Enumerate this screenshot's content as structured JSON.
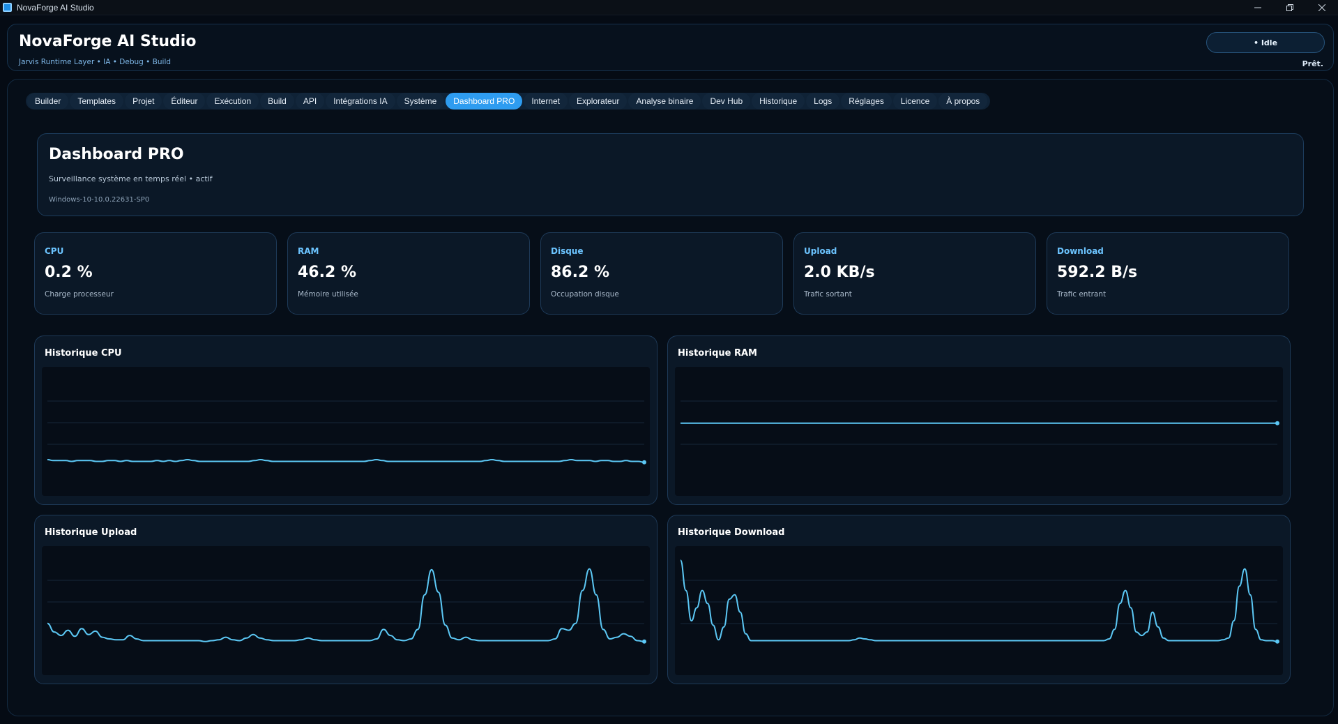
{
  "window": {
    "title": "NovaForge AI Studio"
  },
  "header": {
    "title": "NovaForge AI Studio",
    "subtitle": "Jarvis Runtime Layer • IA • Debug • Build",
    "status": "• Idle",
    "ready": "Prêt."
  },
  "tabs": [
    {
      "label": "Builder"
    },
    {
      "label": "Templates"
    },
    {
      "label": "Projet"
    },
    {
      "label": "Éditeur"
    },
    {
      "label": "Exécution"
    },
    {
      "label": "Build"
    },
    {
      "label": "API"
    },
    {
      "label": "Intégrations IA"
    },
    {
      "label": "Système"
    },
    {
      "label": "Dashboard PRO",
      "active": true
    },
    {
      "label": "Internet"
    },
    {
      "label": "Explorateur"
    },
    {
      "label": "Analyse binaire"
    },
    {
      "label": "Dev Hub"
    },
    {
      "label": "Historique"
    },
    {
      "label": "Logs"
    },
    {
      "label": "Réglages"
    },
    {
      "label": "Licence"
    },
    {
      "label": "À propos"
    }
  ],
  "dashboard": {
    "title": "Dashboard PRO",
    "subtitle": "Surveillance système en temps réel • actif",
    "os": "Windows-10-10.0.22631-SP0"
  },
  "stats": [
    {
      "label": "CPU",
      "value": "0.2 %",
      "desc": "Charge processeur"
    },
    {
      "label": "RAM",
      "value": "46.2 %",
      "desc": "Mémoire utilisée"
    },
    {
      "label": "Disque",
      "value": "86.2 %",
      "desc": "Occupation disque"
    },
    {
      "label": "Upload",
      "value": "2.0 KB/s",
      "desc": "Trafic sortant"
    },
    {
      "label": "Download",
      "value": "592.2 B/s",
      "desc": "Trafic entrant"
    }
  ],
  "charts": [
    {
      "title": "Historique CPU",
      "max": 100,
      "values": [
        4,
        3,
        3,
        3,
        2,
        3,
        3,
        3,
        2,
        2,
        3,
        3,
        2,
        3,
        2,
        2,
        2,
        2,
        3,
        2,
        3,
        2,
        3,
        4,
        3,
        2,
        2,
        2,
        2,
        2,
        2,
        2,
        2,
        2,
        3,
        4,
        3,
        2,
        2,
        2,
        2,
        2,
        2,
        2,
        2,
        2,
        2,
        2,
        2,
        2,
        2,
        2,
        2,
        3,
        4,
        3,
        2,
        2,
        2,
        2,
        2,
        2,
        2,
        2,
        2,
        2,
        2,
        2,
        2,
        2,
        2,
        2,
        3,
        4,
        3,
        2,
        2,
        2,
        2,
        2,
        2,
        2,
        2,
        2,
        2,
        3,
        4,
        3,
        3,
        3,
        2,
        3,
        3,
        2,
        2,
        3,
        2,
        2,
        1
      ]
    },
    {
      "title": "Historique RAM",
      "max": 100,
      "values": [
        46.2,
        46.2,
        46.2,
        46.2,
        46.2,
        46.2,
        46.2,
        46.2,
        46.2,
        46.2,
        46.2,
        46.2,
        46.2,
        46.2,
        46.2,
        46.2,
        46.2,
        46.2,
        46.2,
        46.2,
        46.2,
        46.2,
        46.2,
        46.2,
        46.2,
        46.2,
        46.2,
        46.2,
        46.2,
        46.2,
        46.2,
        46.2,
        46.2,
        46.2,
        46.2,
        46.2,
        46.2,
        46.2,
        46.2,
        46.2,
        46.2,
        46.2,
        46.2,
        46.2,
        46.2,
        46.2,
        46.2,
        46.2,
        46.2,
        46.2,
        46.2,
        46.2,
        46.2,
        46.2,
        46.2,
        46.2,
        46.2,
        46.2,
        46.2,
        46.2,
        46.2,
        46.2,
        46.2,
        46.2,
        46.2,
        46.2,
        46.2,
        46.2,
        46.2,
        46.2,
        46.2,
        46.2,
        46.2,
        46.2,
        46.2,
        46.2,
        46.2,
        46.2,
        46.2,
        46.2,
        46.2,
        46.2,
        46.2,
        46.2,
        46.2,
        46.2,
        46.2,
        46.2,
        46.2,
        46.2,
        46.2,
        46.2,
        46.2,
        46.2,
        46.2,
        46.2,
        46.2,
        46.2,
        46.2,
        46.2
      ]
    },
    {
      "title": "Historique Upload",
      "max": 100,
      "values": [
        22,
        12,
        8,
        14,
        7,
        16,
        9,
        13,
        6,
        4,
        3,
        3,
        8,
        4,
        2,
        2,
        2,
        2,
        2,
        2,
        2,
        2,
        2,
        1,
        2,
        3,
        6,
        3,
        2,
        5,
        9,
        5,
        3,
        2,
        2,
        2,
        2,
        3,
        5,
        3,
        2,
        2,
        2,
        2,
        2,
        2,
        2,
        2,
        4,
        15,
        8,
        3,
        2,
        4,
        15,
        55,
        84,
        58,
        20,
        5,
        3,
        6,
        3,
        2,
        2,
        2,
        2,
        2,
        2,
        2,
        2,
        2,
        2,
        2,
        4,
        16,
        14,
        22,
        60,
        85,
        55,
        15,
        4,
        6,
        10,
        7,
        2,
        1
      ]
    },
    {
      "title": "Historique Download",
      "max": 100,
      "values": [
        95,
        60,
        25,
        40,
        60,
        45,
        20,
        3,
        18,
        50,
        55,
        35,
        10,
        2,
        2,
        2,
        2,
        2,
        2,
        2,
        2,
        2,
        2,
        2,
        2,
        2,
        2,
        2,
        2,
        2,
        2,
        2,
        3,
        5,
        4,
        3,
        2,
        2,
        2,
        2,
        2,
        2,
        2,
        2,
        2,
        2,
        2,
        2,
        2,
        2,
        2,
        2,
        2,
        2,
        2,
        2,
        2,
        2,
        2,
        2,
        2,
        2,
        2,
        2,
        2,
        2,
        2,
        2,
        2,
        2,
        2,
        2,
        2,
        2,
        2,
        2,
        2,
        2,
        2,
        4,
        15,
        45,
        60,
        40,
        12,
        8,
        12,
        35,
        18,
        5,
        2,
        2,
        2,
        2,
        2,
        2,
        2,
        2,
        2,
        2,
        3,
        5,
        25,
        65,
        85,
        55,
        15,
        3,
        2,
        2,
        1
      ]
    }
  ]
}
